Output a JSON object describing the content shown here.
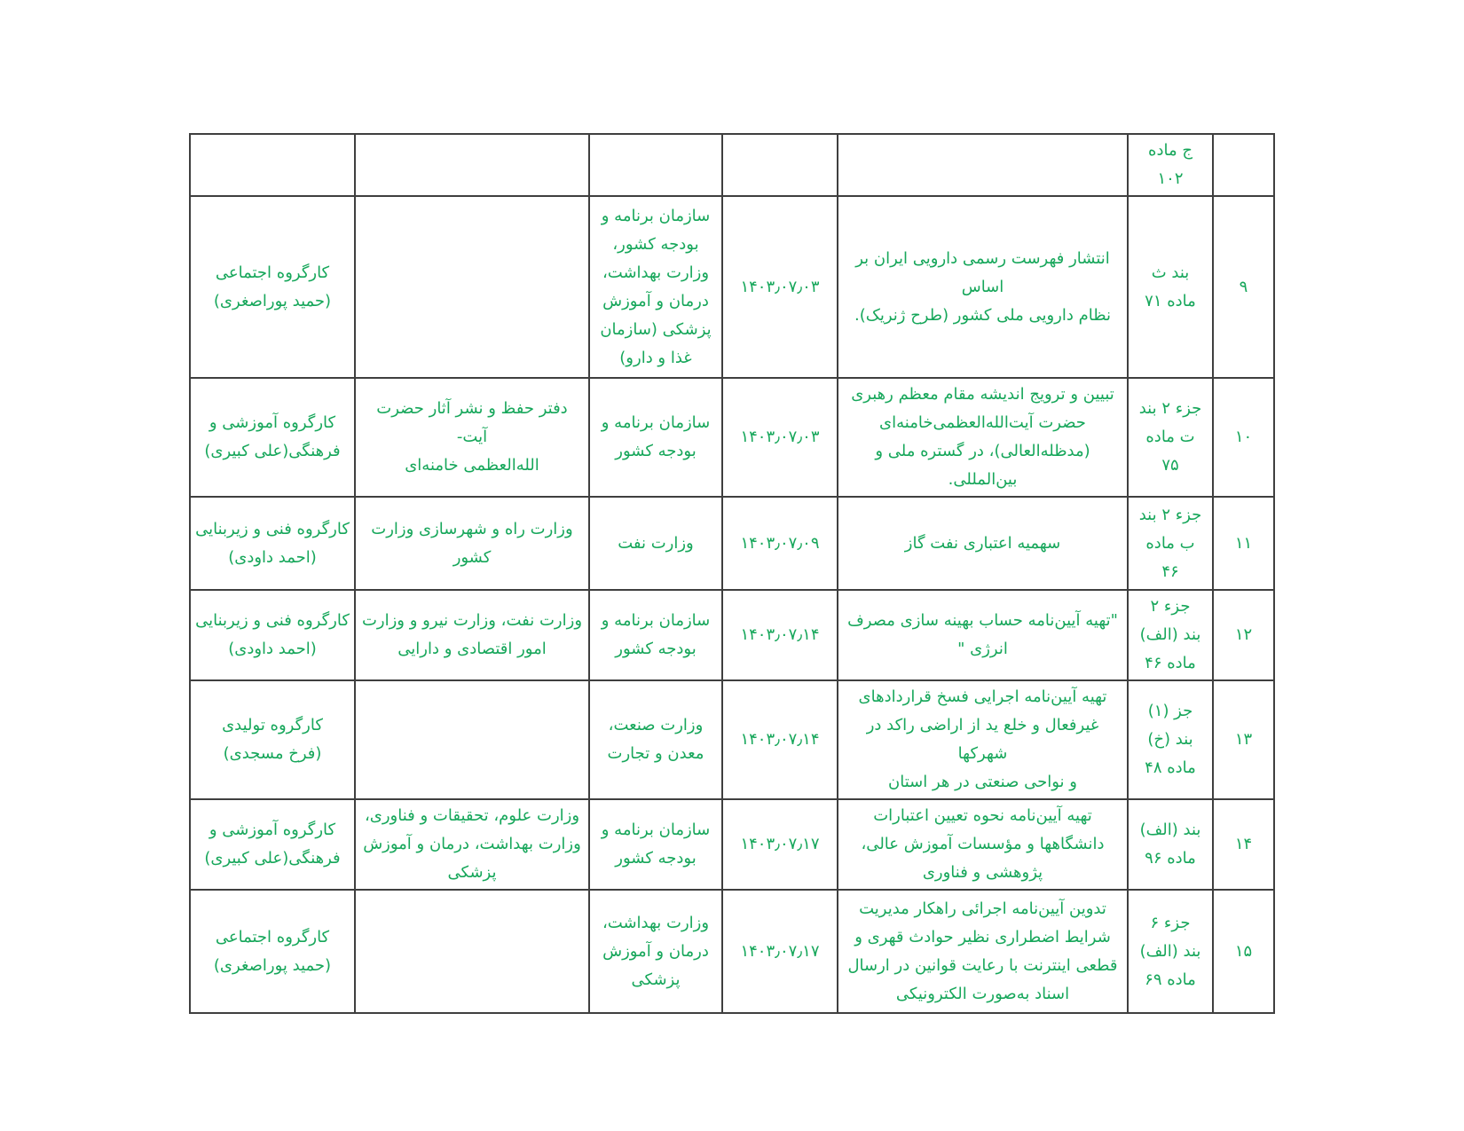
{
  "page": {
    "background": "#ffffff",
    "text_color": "#17a75b",
    "border_color": "#3f3f3f",
    "language": "fa",
    "direction": "rtl"
  },
  "table": {
    "rows": [
      {
        "num": "",
        "madeh": "ج ماده\n۱۰۲",
        "desc": "",
        "date": "",
        "org_main": "",
        "org_co": "",
        "workgroup": ""
      },
      {
        "num": "۹",
        "madeh": "بند ث\nماده ۷۱",
        "desc": "انتشار فهرست رسمی دارویی ایران بر اساس\nنظام دارویی ملی کشور (طرح ژنریک).",
        "date": "۱۴۰۳٫۰۷٫۰۳",
        "org_main": "سازمان برنامه و\nبودجه کشور،\nوزارت بهداشت،\nدرمان و آموزش\nپزشکی (سازمان\nغذا و دارو)",
        "org_co": "",
        "workgroup": "کارگروه اجتماعی\n(حمید پوراصغری)"
      },
      {
        "num": "۱۰",
        "madeh": "جزء ۲ بند\nت ماده\n۷۵",
        "desc": "تبیین و ترویج اندیشه مقام معظم رهبری\nحضرت آیت‌الله‌العظمی‌خامنه‌ای\n(مدظله‌العالی)، در گستره ملی و بین‌المللی.",
        "date": "۱۴۰۳٫۰۷٫۰۳",
        "org_main": "سازمان برنامه و\nبودجه کشور",
        "org_co": "دفتر حفظ و نشر آثار حضرت آیت-\nالله‌العظمی خامنه‌ای",
        "workgroup": "کارگروه آموزشی و\nفرهنگی(علی کبیری)"
      },
      {
        "num": "۱۱",
        "madeh": "جزء ۲ بند\nب ماده\n۴۶",
        "desc": "سهمیه اعتباری نفت گاز",
        "date": "۱۴۰۳٫۰۷٫۰۹",
        "org_main": "وزارت نفت",
        "org_co": "وزارت راه و شهرسازی وزارت\nکشور",
        "workgroup": "کارگروه فنی و زیربنایی\n(احمد داودی)"
      },
      {
        "num": "۱۲",
        "madeh": "جزء ۲\nبند (الف)\nماده ۴۶",
        "desc": "\"تهیه آیین‌نامه حساب بهینه سازی مصرف\nانرژی \"",
        "date": "۱۴۰۳٫۰۷٫۱۴",
        "org_main": "سازمان برنامه و\nبودجه کشور",
        "org_co": "وزارت نفت، وزارت نیرو و وزارت\nامور اقتصادی و دارایی",
        "workgroup": "کارگروه فنی و زیربنایی\n(احمد داودی)"
      },
      {
        "num": "۱۳",
        "madeh": "جز (۱)\nبند (خ)\nماده ۴۸",
        "desc": "تهیه آیین‌نامه اجرایی فسخ قراردادهای\nغیرفعال و خلع ید از اراضی راکد در شهرکها\nو نواحی صنعتی در هر استان",
        "date": "۱۴۰۳٫۰۷٫۱۴",
        "org_main": "وزارت صنعت،\nمعدن و تجارت",
        "org_co": "",
        "workgroup": "کارگروه تولیدی\n(فرخ مسجدی)"
      },
      {
        "num": "۱۴",
        "madeh": "بند (الف)\nماده ۹۶",
        "desc": "تهیه آیین‌نامه نحوه تعیین اعتبارات\nدانشگاهها و مؤسسات آموزش عالی،\nپژوهشی و فناوری",
        "date": "۱۴۰۳٫۰۷٫۱۷",
        "org_main": "سازمان برنامه و\nبودجه کشور",
        "org_co": "وزارت علوم، تحقیقات و فناوری،\nوزارت بهداشت، درمان و آموزش\nپزشکی",
        "workgroup": "کارگروه آموزشی و\nفرهنگی(علی کبیری)"
      },
      {
        "num": "۱۵",
        "madeh": "جزء ۶\nبند (الف)\nماده ۶۹",
        "desc": "تدوین آیین‌نامه اجرائی راهکار مدیریت\nشرایط اضطراری نظیر حوادث قهری و\nقطعی اینترنت با رعایت قوانین در ارسال\nاسناد به‌صورت الکترونیکی",
        "date": "۱۴۰۳٫۰۷٫۱۷",
        "org_main": "وزارت بهداشت،\nدرمان و آموزش\nپزشکی",
        "org_co": "",
        "workgroup": "کارگروه اجتماعی\n(حمید پوراصغری)"
      }
    ]
  }
}
